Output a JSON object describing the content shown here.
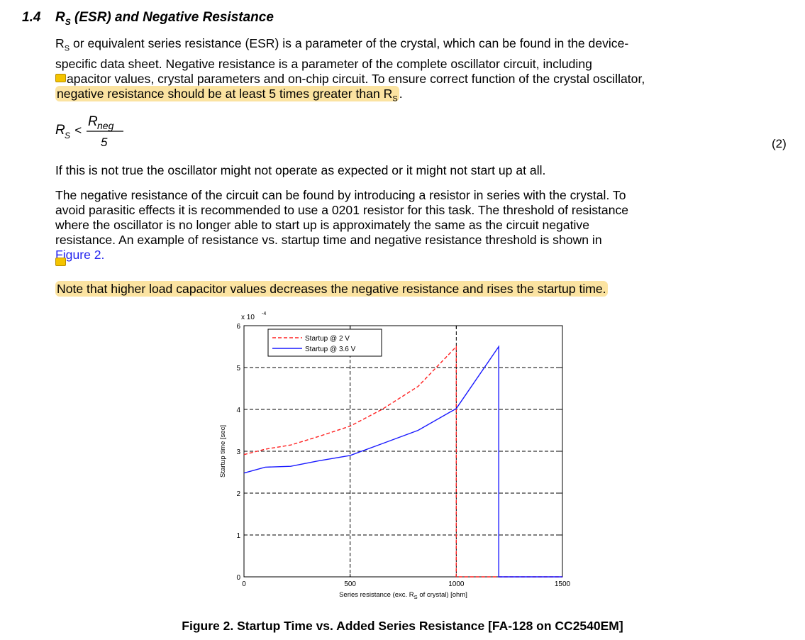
{
  "section": {
    "number": "1.4",
    "title_rs": "R",
    "title_rs_sub": "S",
    "title_rest": " (ESR) and Negative Resistance"
  },
  "para1": {
    "rs": "R",
    "rs_sub": "S",
    "line1_rest": " or equivalent series resistance (ESR) is a parameter of the crystal, which can be found in the device-",
    "line2": "specific data sheet. Negative resistance is a parameter of the complete oscillator circuit, including",
    "line3": "apacitor values, crystal parameters and on-chip circuit. To ensure correct function of the crystal oscillator,",
    "line4_hl": "negative resistance should be at least 5 times greater than R",
    "line4_sub": "S",
    "line4_end": "."
  },
  "formula": {
    "lhs": "R",
    "lhs_sub": "S",
    "op": "<",
    "num": "R",
    "num_sub": "neg",
    "den": "5",
    "eq_number": "(2)"
  },
  "para2": "If this is not true the oscillator might not operate as expected or it might not start up at all.",
  "para3": {
    "line1": "The negative resistance of the circuit can be found by introducing a resistor in series with the crystal. To",
    "line2": "avoid parasitic effects it is recommended to use a 0201 resistor for this task. The threshold of resistance",
    "line3": "where the oscillator is no longer able to start up is approximately the same as the circuit negative",
    "line4": "resistance. An example of resistance vs. startup time and negative resistance threshold is shown in",
    "link": "Figure 2."
  },
  "para4": "Note that higher load capacitor values decreases the negative resistance and rises the startup time.",
  "colors": {
    "highlight": "#fbe3a1",
    "link": "#2222ee",
    "series_2v": "#ff2020",
    "series_36v": "#1a1aff"
  },
  "chart_data": {
    "type": "line",
    "exponent_label": "x 10",
    "exponent_power": "-4",
    "xlabel_pre": "Series resistance (exc. R",
    "xlabel_sub": "S",
    "xlabel_post": " of crystal) [ohm]",
    "ylabel": "Startup time [sec]",
    "xlim": [
      0,
      1500
    ],
    "ylim": [
      0,
      6
    ],
    "xticks": [
      0,
      500,
      1000,
      1500
    ],
    "yticks": [
      0,
      1,
      2,
      3,
      4,
      5,
      6
    ],
    "grid": true,
    "legend_position": "top-left",
    "series": [
      {
        "name": "Startup @ 2 V",
        "style": "dashed",
        "x": [
          0,
          100,
          220,
          350,
          500,
          650,
          820,
          1000,
          1000,
          1500
        ],
        "y": [
          2.92,
          3.05,
          3.15,
          3.35,
          3.6,
          4.0,
          4.55,
          5.5,
          0,
          0
        ]
      },
      {
        "name": "Startup @ 3.6 V",
        "style": "solid",
        "x": [
          0,
          100,
          220,
          350,
          500,
          650,
          820,
          1000,
          1200,
          1200,
          1500
        ],
        "y": [
          2.48,
          2.62,
          2.64,
          2.77,
          2.9,
          3.18,
          3.5,
          4.02,
          5.5,
          0,
          0
        ]
      }
    ]
  },
  "caption": "Figure 2. Startup Time vs. Added Series Resistance [FA-128 on CC2540EM]"
}
